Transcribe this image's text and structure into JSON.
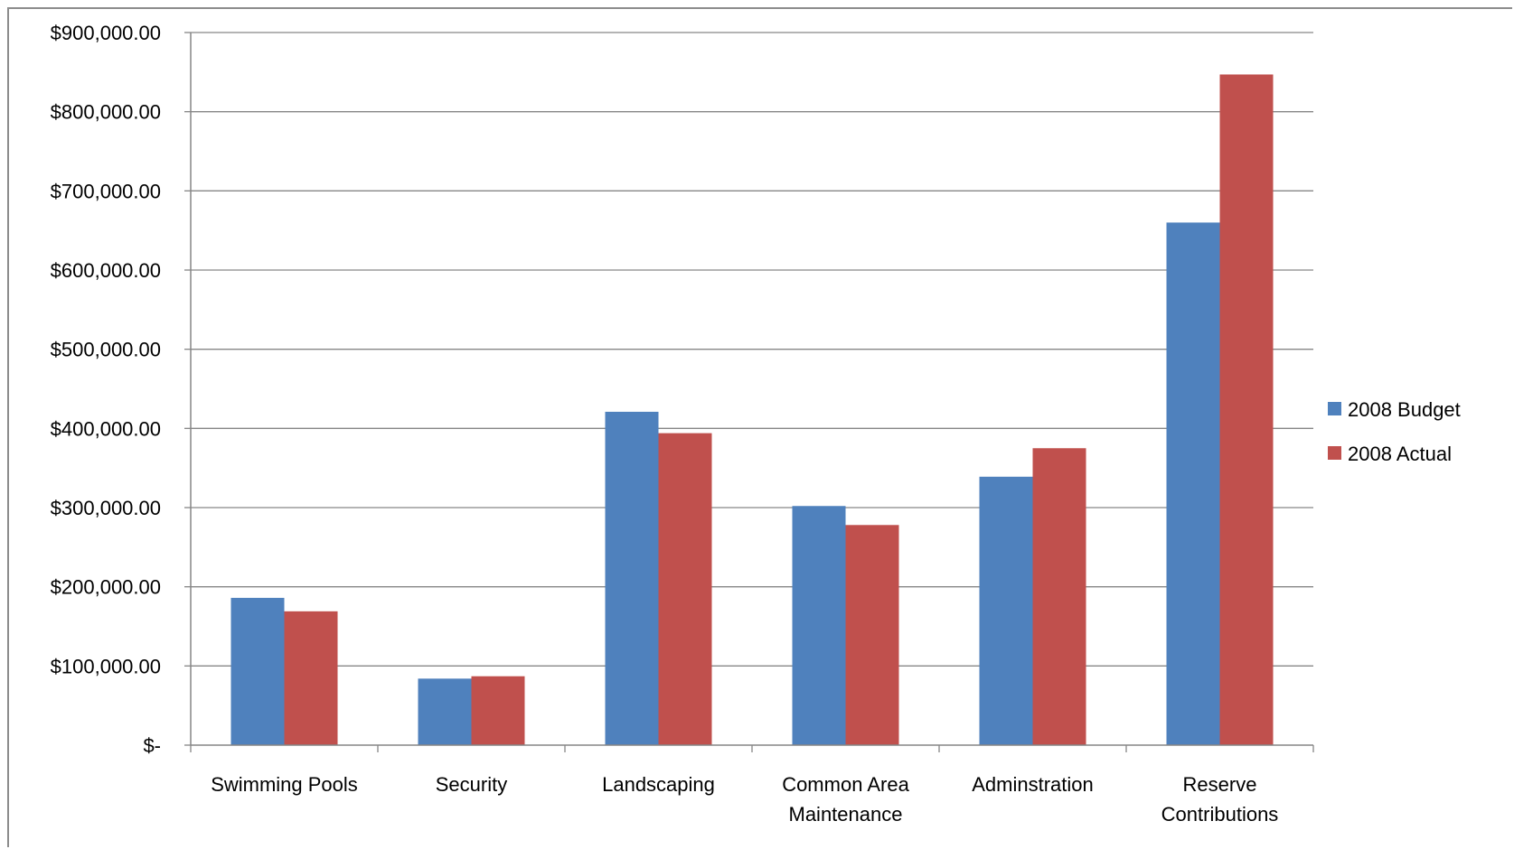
{
  "chart_data": {
    "type": "bar",
    "categories": [
      [
        "Swimming Pools"
      ],
      [
        "Security"
      ],
      [
        "Landscaping"
      ],
      [
        "Common Area",
        "Maintenance"
      ],
      [
        "Adminstration"
      ],
      [
        "Reserve",
        "Contributions"
      ]
    ],
    "series": [
      {
        "name": "2008 Budget",
        "color": "#4f81bd",
        "values": [
          186000,
          84000,
          421000,
          302000,
          339000,
          660000
        ]
      },
      {
        "name": "2008 Actual",
        "color": "#c0504d",
        "values": [
          169000,
          87000,
          394000,
          278000,
          375000,
          847000
        ]
      }
    ],
    "ylim": [
      0,
      900000
    ],
    "ytick_values": [
      0,
      100000,
      200000,
      300000,
      400000,
      500000,
      600000,
      700000,
      800000,
      900000
    ],
    "ytick_labels": [
      "$-",
      "$100,000.00",
      "$200,000.00",
      "$300,000.00",
      "$400,000.00",
      "$500,000.00",
      "$600,000.00",
      "$700,000.00",
      "$800,000.00",
      "$900,000.00"
    ],
    "grid": true,
    "legend_position": "right",
    "title": "",
    "xlabel": "",
    "ylabel": ""
  }
}
